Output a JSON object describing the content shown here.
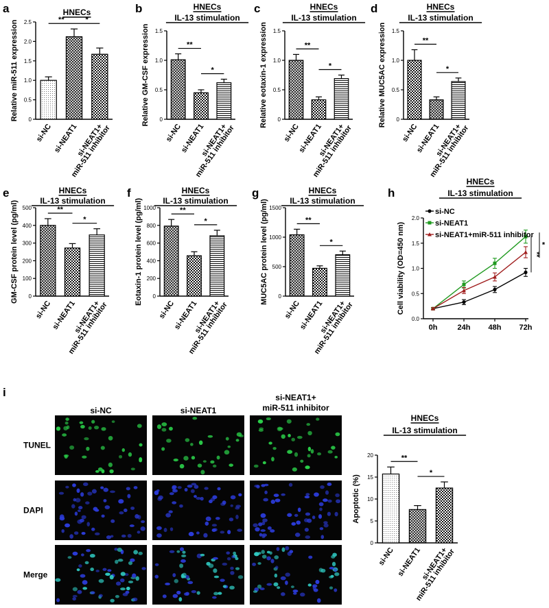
{
  "colors": {
    "ink": "#000000",
    "line_sinc": "#000000",
    "line_sineat1": "#1f9a1f",
    "line_combo": "#a01e1e",
    "tunel": "#2bd24a",
    "dapi": "#2b3bd8",
    "merge": "#2fc8c0"
  },
  "chart_data": [
    {
      "id": "a",
      "panel_label": "a",
      "type": "bar",
      "header": [
        "HNECs"
      ],
      "ylabel": "Relative miR-511 expression",
      "ylim": [
        0,
        2.5
      ],
      "yticks": [
        "0",
        "0.5",
        "1.0",
        "1.5",
        "2.0",
        "2.5"
      ],
      "categories": [
        "si-NC",
        "si-NEAT1",
        "si-NEAT1+\nmiR-511 inhibitor"
      ],
      "values": [
        1.0,
        2.12,
        1.67
      ],
      "errors": [
        0.09,
        0.2,
        0.16
      ],
      "patterns": [
        "dots",
        "grid",
        "checker"
      ],
      "sig": [
        {
          "i": 0,
          "j": 1,
          "label": "**"
        },
        {
          "i": 1,
          "j": 2,
          "label": "*"
        }
      ]
    },
    {
      "id": "b",
      "panel_label": "b",
      "type": "bar",
      "header": [
        "HNECs",
        "IL-13 stimulation"
      ],
      "ylabel": "Relative GM-CSF expression",
      "ylim": [
        0,
        1.5
      ],
      "yticks": [
        "0",
        "0.5",
        "1.0",
        "1.5"
      ],
      "categories": [
        "si-NC",
        "si-NEAT1",
        "si-NEAT1+\nmiR-511 inhibitor"
      ],
      "values": [
        1.01,
        0.45,
        0.62
      ],
      "errors": [
        0.1,
        0.05,
        0.06
      ],
      "patterns": [
        "grid",
        "checker",
        "hlines"
      ],
      "sig": [
        {
          "i": 0,
          "j": 1,
          "label": "**"
        },
        {
          "i": 1,
          "j": 2,
          "label": "*"
        }
      ]
    },
    {
      "id": "c",
      "panel_label": "c",
      "type": "bar",
      "header": [
        "HNECs",
        "IL-13 stimulation"
      ],
      "ylabel": "Relative eotaxin-1 expression",
      "ylim": [
        0,
        1.5
      ],
      "yticks": [
        "0",
        "0.5",
        "1.0",
        "1.5"
      ],
      "categories": [
        "si-NC",
        "si-NEAT1",
        "si-NEAT1+\nmiR-511 inhibitor"
      ],
      "values": [
        1.0,
        0.33,
        0.69
      ],
      "errors": [
        0.1,
        0.05,
        0.06
      ],
      "patterns": [
        "grid",
        "checker",
        "hlines"
      ],
      "sig": [
        {
          "i": 0,
          "j": 1,
          "label": "**"
        },
        {
          "i": 1,
          "j": 2,
          "label": "*"
        }
      ]
    },
    {
      "id": "d",
      "panel_label": "d",
      "type": "bar",
      "header": [
        "HNECs",
        "IL-13 stimulation"
      ],
      "ylabel": "Relative MUC5AC expression",
      "ylim": [
        0,
        1.5
      ],
      "yticks": [
        "0",
        "0.5",
        "1.0",
        "1.5"
      ],
      "categories": [
        "si-NC",
        "si-NEAT1",
        "si-NEAT1+\nmiR-511 inhibitor"
      ],
      "values": [
        1.0,
        0.33,
        0.64
      ],
      "errors": [
        0.18,
        0.05,
        0.06
      ],
      "patterns": [
        "checker",
        "grid",
        "hlines"
      ],
      "sig": [
        {
          "i": 0,
          "j": 1,
          "label": "**"
        },
        {
          "i": 1,
          "j": 2,
          "label": "*"
        }
      ]
    },
    {
      "id": "e",
      "panel_label": "e",
      "type": "bar",
      "header": [
        "HNECs",
        "IL-13 stimulation"
      ],
      "ylabel": "GM-CSF protein level (pg/ml)",
      "ylim": [
        0,
        500
      ],
      "yticks": [
        "0",
        "100",
        "200",
        "300",
        "400",
        "500"
      ],
      "categories": [
        "si-NC",
        "si-NEAT1",
        "si-NEAT1+\nmiR-511 inhibitor"
      ],
      "values": [
        400,
        272,
        346
      ],
      "errors": [
        38,
        25,
        35
      ],
      "patterns": [
        "grid",
        "checker",
        "hlines"
      ],
      "sig": [
        {
          "i": 0,
          "j": 1,
          "label": "**"
        },
        {
          "i": 1,
          "j": 2,
          "label": "*"
        }
      ]
    },
    {
      "id": "f",
      "panel_label": "f",
      "type": "bar",
      "header": [
        "HNECs",
        "IL-13 stimulation"
      ],
      "ylabel": "Eotaxin-1 protein level (pg/ml)",
      "ylim": [
        0,
        1000
      ],
      "yticks": [
        "0",
        "200",
        "400",
        "600",
        "800",
        "1000"
      ],
      "categories": [
        "si-NC",
        "si-NEAT1",
        "si-NEAT1+\nmiR-511 inhibitor"
      ],
      "values": [
        792,
        457,
        683
      ],
      "errors": [
        75,
        45,
        62
      ],
      "patterns": [
        "grid",
        "checker",
        "hlines"
      ],
      "sig": [
        {
          "i": 0,
          "j": 1,
          "label": "**"
        },
        {
          "i": 1,
          "j": 2,
          "label": "*"
        }
      ]
    },
    {
      "id": "g",
      "panel_label": "g",
      "type": "bar",
      "header": [
        "HNECs",
        "IL-13 stimulation"
      ],
      "ylabel": "MUC5AC protein level (pg/ml)",
      "ylim": [
        0,
        1500
      ],
      "yticks": [
        "0",
        "500",
        "1000",
        "1500"
      ],
      "categories": [
        "si-NC",
        "si-NEAT1",
        "si-NEAT1+\nmiR-511 inhibitor"
      ],
      "values": [
        1040,
        472,
        702
      ],
      "errors": [
        95,
        42,
        62
      ],
      "patterns": [
        "grid",
        "checker",
        "hlines"
      ],
      "sig": [
        {
          "i": 0,
          "j": 1,
          "label": "**"
        },
        {
          "i": 1,
          "j": 2,
          "label": "*"
        }
      ]
    },
    {
      "id": "h",
      "panel_label": "h",
      "type": "line",
      "header": [
        "HNECs",
        "IL-13 stimulation"
      ],
      "ylabel": "Cell viability (OD=450 nm)",
      "ylim": [
        0,
        2.0
      ],
      "yticks": [
        "0.0",
        "0.5",
        "1.0",
        "1.5",
        "2.0"
      ],
      "x": [
        "0h",
        "24h",
        "48h",
        "72h"
      ],
      "series": [
        {
          "name": "si-NC",
          "values": [
            0.2,
            0.33,
            0.58,
            0.92
          ],
          "errors": [
            0.02,
            0.05,
            0.06,
            0.08
          ],
          "color": "#000000"
        },
        {
          "name": "si-NEAT1",
          "values": [
            0.2,
            0.68,
            1.1,
            1.63
          ],
          "errors": [
            0.02,
            0.07,
            0.1,
            0.13
          ],
          "color": "#1f9a1f"
        },
        {
          "name": "si-NEAT1+miR-511 inhibitor",
          "values": [
            0.2,
            0.56,
            0.83,
            1.32
          ],
          "errors": [
            0.02,
            0.06,
            0.08,
            0.11
          ],
          "color": "#a01e1e"
        }
      ],
      "sig": [
        {
          "label": "**"
        },
        {
          "label": "*"
        }
      ]
    },
    {
      "id": "i",
      "panel_label": "i",
      "type": "bar",
      "header": [
        "HNECs",
        "IL-13 stimulation"
      ],
      "ylabel": "Apoptotic (%)",
      "ylim": [
        0,
        20
      ],
      "yticks": [
        "0",
        "5",
        "10",
        "15",
        "20"
      ],
      "categories": [
        "si-NC",
        "si-NEAT1",
        "si-NEAT1+\nmiR-511 inhibitor"
      ],
      "values": [
        15.7,
        7.6,
        12.5
      ],
      "errors": [
        1.6,
        0.9,
        1.4
      ],
      "patterns": [
        "dots",
        "grid",
        "checker"
      ],
      "sig": [
        {
          "i": 0,
          "j": 1,
          "label": "**"
        },
        {
          "i": 1,
          "j": 2,
          "label": "*"
        }
      ]
    }
  ],
  "micrographs": {
    "columns": [
      "si-NC",
      "si-NEAT1",
      "si-NEAT1+\nmiR-511 inhibitor"
    ],
    "rows": [
      "TUNEL",
      "DAPI",
      "Merge"
    ],
    "tunel_counts": [
      34,
      28,
      32
    ],
    "dapi_counts": [
      55,
      52,
      54
    ]
  }
}
